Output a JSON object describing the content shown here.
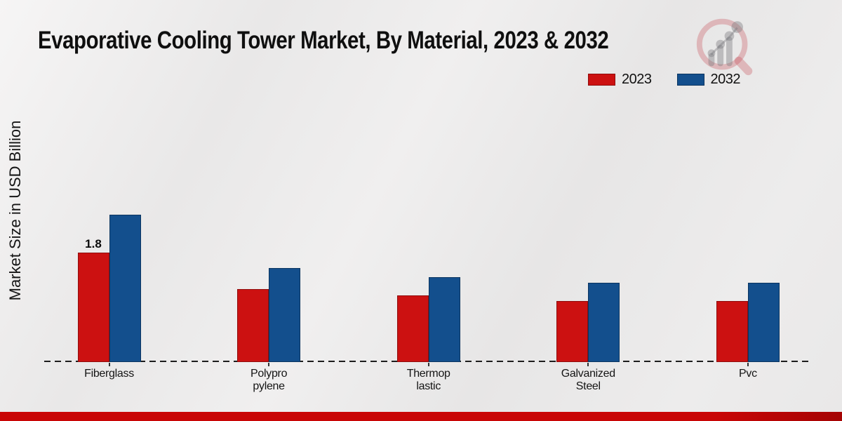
{
  "title": "Evaporative Cooling Tower Market, By Material, 2023 & 2032",
  "y_axis_label": "Market Size in USD Billion",
  "legend": {
    "items": [
      {
        "label": "2023",
        "color": "#cc1111",
        "edge": "#8f0d0d"
      },
      {
        "label": "2032",
        "color": "#134f8d",
        "edge": "#0b3560"
      }
    ]
  },
  "colors": {
    "background": "#ebebeb",
    "axis": "#1d1d1d",
    "footer": "#c90606",
    "footer_dark": "#a50404",
    "title_text": "#0f0f0f",
    "watermark_pink": "rgba(197,70,80,0.30)",
    "watermark_gray": "rgba(120,120,126,0.40)"
  },
  "chart_data": {
    "type": "bar",
    "title": "Evaporative Cooling Tower Market, By Material, 2023 & 2032",
    "xlabel": "",
    "ylabel": "Market Size in USD Billion",
    "categories": [
      "Fiberglass",
      "Polypro\npylene",
      "Thermop\nlastic",
      "Galvanized\nSteel",
      "Pvc"
    ],
    "series": [
      {
        "name": "2023",
        "color": "#cc1111",
        "edge": "#8f0d0d",
        "values": [
          1.8,
          1.2,
          1.1,
          1.0,
          1.0
        ]
      },
      {
        "name": "2032",
        "color": "#134f8d",
        "edge": "#0b3560",
        "values": [
          2.42,
          1.55,
          1.4,
          1.3,
          1.3
        ]
      }
    ],
    "bar_value_labels": [
      {
        "series": "2023",
        "category": "Fiberglass",
        "text": "1.8"
      }
    ],
    "ylim": [
      0,
      2.8
    ],
    "grid": false,
    "legend_position": "top-right",
    "baseline_style": "dashed",
    "y_ticks_visible": false
  }
}
